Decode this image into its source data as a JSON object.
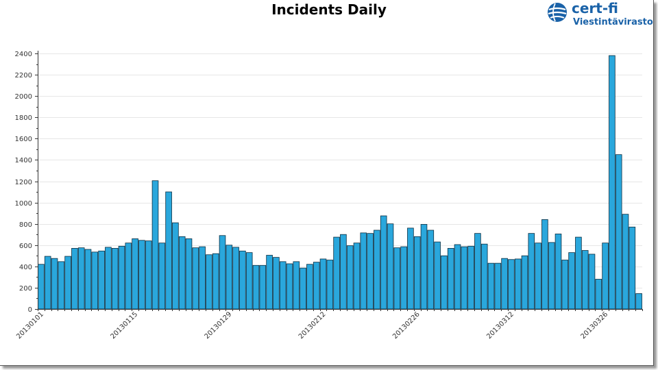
{
  "chart_data": {
    "type": "bar",
    "title": "Incidents Daily",
    "xlabel": "",
    "ylabel": "",
    "ylim": [
      0,
      2400
    ],
    "yticks": [
      0,
      200,
      400,
      600,
      800,
      1000,
      1200,
      1400,
      1600,
      1800,
      2000,
      2200,
      2400
    ],
    "grid": true,
    "bar_color": "#2aa7dc",
    "x_tick_labels": [
      "20130101",
      "20130115",
      "20130129",
      "20130212",
      "20130226",
      "20130312",
      "20130326"
    ],
    "x_tick_every": 14,
    "categories": [
      "20130101",
      "20130102",
      "20130103",
      "20130104",
      "20130105",
      "20130106",
      "20130107",
      "20130108",
      "20130109",
      "20130110",
      "20130111",
      "20130112",
      "20130113",
      "20130114",
      "20130115",
      "20130116",
      "20130117",
      "20130118",
      "20130119",
      "20130120",
      "20130121",
      "20130122",
      "20130123",
      "20130124",
      "20130125",
      "20130126",
      "20130127",
      "20130128",
      "20130129",
      "20130130",
      "20130131",
      "20130201",
      "20130202",
      "20130203",
      "20130204",
      "20130205",
      "20130206",
      "20130207",
      "20130208",
      "20130209",
      "20130210",
      "20130211",
      "20130212",
      "20130213",
      "20130214",
      "20130215",
      "20130216",
      "20130217",
      "20130218",
      "20130219",
      "20130220",
      "20130221",
      "20130222",
      "20130223",
      "20130224",
      "20130225",
      "20130226",
      "20130227",
      "20130228",
      "20130301",
      "20130302",
      "20130303",
      "20130304",
      "20130305",
      "20130306",
      "20130307",
      "20130308",
      "20130309",
      "20130310",
      "20130311",
      "20130312",
      "20130313",
      "20130314",
      "20130315",
      "20130316",
      "20130317",
      "20130318",
      "20130319",
      "20130320",
      "20130321",
      "20130322",
      "20130323",
      "20130324",
      "20130325",
      "20130326",
      "20130327",
      "20130328",
      "20130329",
      "20130330",
      "20130331"
    ],
    "values": [
      420,
      495,
      475,
      445,
      495,
      570,
      575,
      560,
      535,
      545,
      580,
      570,
      590,
      620,
      660,
      645,
      640,
      1205,
      620,
      1100,
      810,
      680,
      660,
      575,
      585,
      510,
      520,
      690,
      600,
      580,
      545,
      530,
      410,
      410,
      505,
      485,
      445,
      425,
      445,
      385,
      420,
      440,
      470,
      460,
      675,
      700,
      595,
      620,
      715,
      710,
      740,
      875,
      800,
      575,
      585,
      760,
      680,
      795,
      740,
      630,
      500,
      570,
      605,
      585,
      590,
      710,
      610,
      430,
      430,
      475,
      465,
      470,
      500,
      710,
      620,
      840,
      625,
      705,
      460,
      530,
      675,
      550,
      515,
      280,
      620,
      2380,
      1450,
      890,
      770,
      145
    ]
  },
  "logo": {
    "name": "cert-fi",
    "subtitle": "Viestintävirasto",
    "color": "#1a62a8",
    "icon": "globe-icon"
  }
}
